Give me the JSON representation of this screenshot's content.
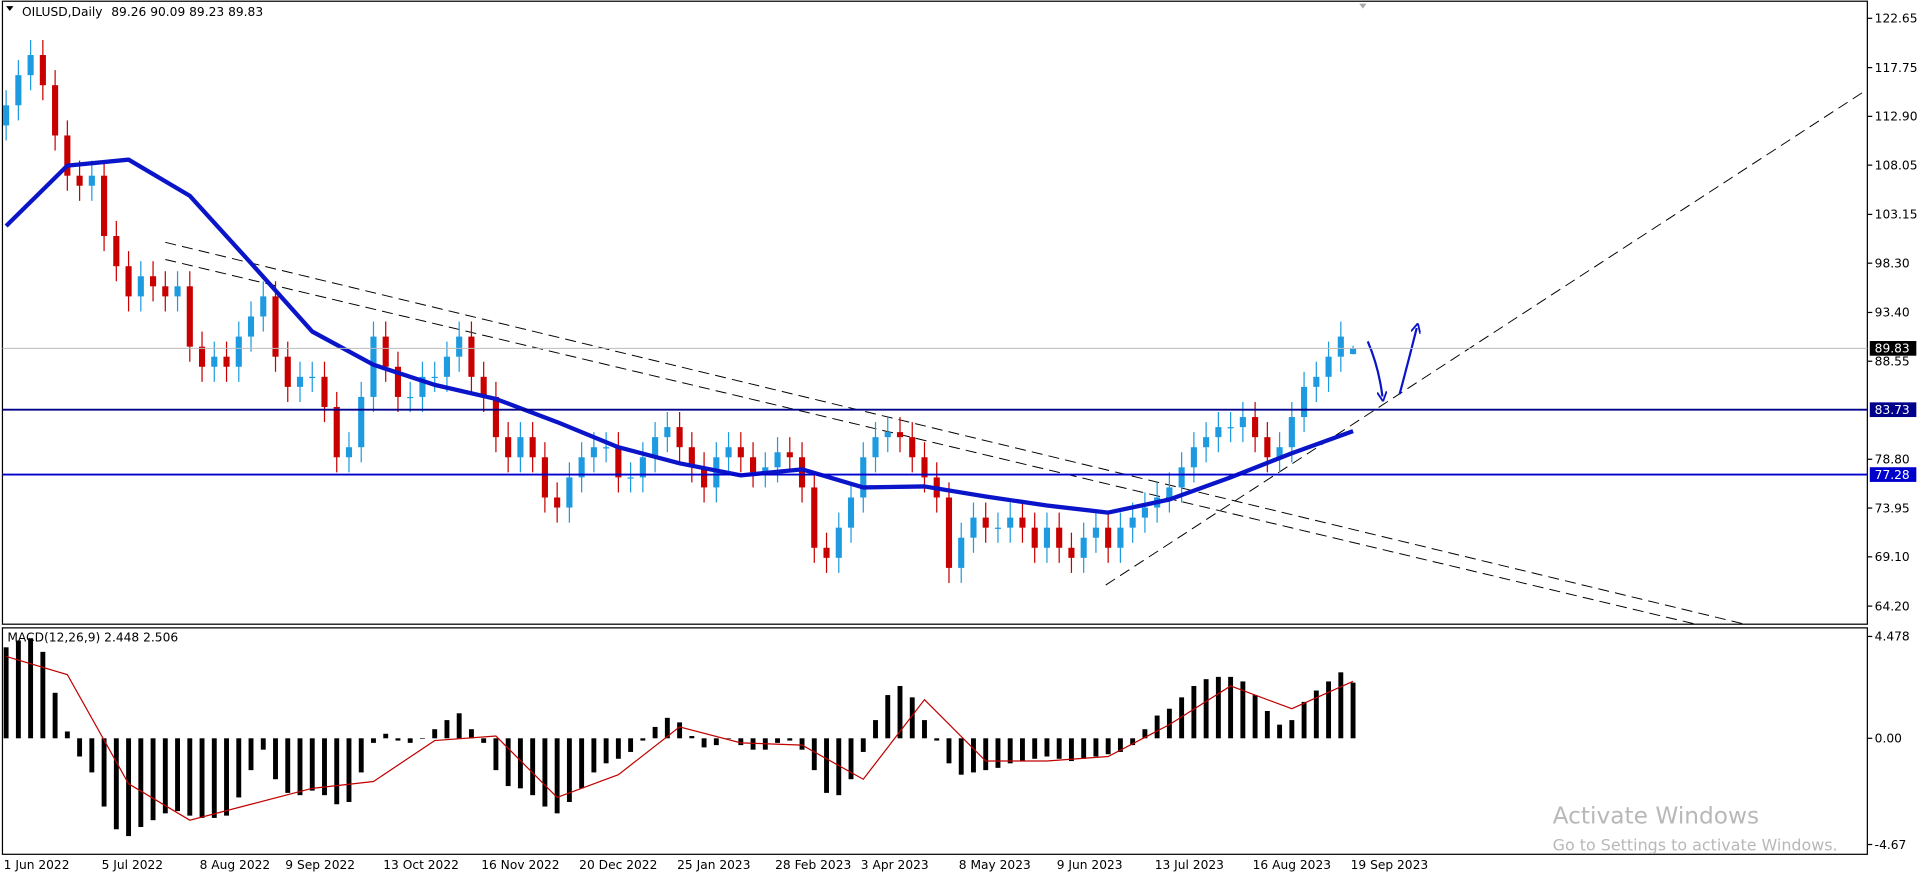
{
  "chart_data": [
    {
      "type": "candlestick",
      "symbol": "OILUSD,Daily",
      "categories": [
        "1 Jun 2022",
        null,
        null,
        null,
        null,
        null,
        null,
        null,
        "5 Jul 2022",
        null,
        null,
        null,
        null,
        null,
        null,
        null,
        "8 Aug 2022",
        null,
        null,
        null,
        null,
        null,
        null,
        "9 Sep 2022",
        null,
        null,
        null,
        null,
        null,
        null,
        null,
        "13 Oct 2022",
        null,
        null,
        null,
        null,
        null,
        null,
        null,
        "16 Nov 2022",
        null,
        null,
        null,
        null,
        null,
        null,
        null,
        "20 Dec 2022",
        null,
        null,
        null,
        null,
        null,
        null,
        null,
        "25 Jan 2023",
        null,
        null,
        null,
        null,
        null,
        null,
        null,
        "28 Feb 2023",
        null,
        null,
        null,
        null,
        null,
        null,
        "3 Apr 2023",
        null,
        null,
        null,
        null,
        null,
        null,
        null,
        "8 May 2023",
        null,
        null,
        null,
        null,
        null,
        null,
        null,
        "9 Jun 2023",
        null,
        null,
        null,
        null,
        null,
        null,
        null,
        "13 Jul 2023",
        null,
        null,
        null,
        null,
        null,
        null,
        null,
        "16 Aug 2023",
        null,
        null,
        null,
        null,
        null,
        null,
        null,
        "19 Sep 2023"
      ],
      "open": [
        112,
        114,
        117,
        119,
        116,
        111,
        107,
        106,
        107,
        101,
        98,
        95,
        97,
        96,
        95,
        96,
        90,
        88,
        89,
        88,
        91,
        93,
        95,
        89,
        86,
        87,
        87,
        84,
        79,
        80,
        85,
        91,
        88,
        85,
        85,
        87,
        87,
        89,
        91,
        87,
        85,
        81,
        79,
        81,
        79,
        75,
        74,
        77,
        79,
        80,
        80,
        77,
        77,
        79,
        81,
        82,
        80,
        78,
        76,
        79,
        80,
        79,
        77.5,
        78,
        79.5,
        79,
        76,
        70,
        69,
        72,
        75,
        79,
        81,
        81.5,
        81,
        79,
        77,
        75,
        68,
        71,
        73,
        72,
        72,
        73,
        72,
        70,
        72,
        70,
        69,
        71,
        72,
        70,
        72,
        73,
        74,
        75,
        76,
        78,
        80,
        81,
        82,
        82,
        83,
        81,
        79,
        80,
        83,
        86,
        87,
        89,
        89.26
      ],
      "high": [
        115.5,
        118.5,
        120.5,
        120.5,
        117.5,
        112.5,
        108.5,
        108.5,
        108.5,
        102.5,
        99.5,
        98.5,
        98.5,
        97.5,
        97.5,
        97.5,
        91.5,
        90.5,
        90.5,
        92.5,
        94.5,
        96.5,
        96.5,
        90.5,
        88.5,
        88.5,
        88.5,
        85.5,
        81.5,
        86.5,
        92.5,
        92.5,
        89.5,
        86.5,
        88.5,
        88.5,
        90.5,
        92.5,
        92.5,
        88.5,
        86.5,
        82.5,
        82.5,
        82.5,
        80.5,
        76.5,
        78.5,
        80.5,
        81.5,
        81.5,
        81.5,
        78.5,
        80.5,
        82.5,
        83.5,
        83.5,
        81.5,
        79.5,
        80.5,
        81.5,
        81.5,
        80.5,
        79.5,
        81,
        81,
        80.5,
        77.5,
        71.5,
        73.5,
        76.5,
        80.5,
        82.5,
        83,
        83,
        82.5,
        80.5,
        78.5,
        76.5,
        72.5,
        74.5,
        74.5,
        73.5,
        74.5,
        74.5,
        73.5,
        73.5,
        73.5,
        71.5,
        72.5,
        73.5,
        73.5,
        73.5,
        74.5,
        75.5,
        76.5,
        77.5,
        79.5,
        81.5,
        82.5,
        83.5,
        83.5,
        84.5,
        84.5,
        82.5,
        81.5,
        84.5,
        87.5,
        88.5,
        90.5,
        92.5,
        90.09
      ],
      "low": [
        110.5,
        112.5,
        115.5,
        114.5,
        109.5,
        105.5,
        104.5,
        104.5,
        99.5,
        96.5,
        93.5,
        93.5,
        94.5,
        93.5,
        93.5,
        88.5,
        86.5,
        86.5,
        86.5,
        86.5,
        89.5,
        91.5,
        87.5,
        84.5,
        84.5,
        85.5,
        82.5,
        77.5,
        77.5,
        78.5,
        83.5,
        86.5,
        83.5,
        83.5,
        83.5,
        85.5,
        85.5,
        87.5,
        85.5,
        83.5,
        79.5,
        77.5,
        77.5,
        77.5,
        73.5,
        72.5,
        72.5,
        75.5,
        77.5,
        78.5,
        75.5,
        75.5,
        75.5,
        77.5,
        79.5,
        78.5,
        76.5,
        74.5,
        74.5,
        77.5,
        77.5,
        76,
        76,
        76.5,
        77.5,
        74.5,
        68.5,
        67.5,
        67.5,
        70.5,
        73.5,
        77.5,
        79.5,
        79.5,
        77.5,
        75.5,
        73.5,
        66.5,
        66.5,
        69.5,
        70.5,
        70.5,
        70.5,
        70.5,
        68.5,
        68.5,
        68.5,
        67.5,
        67.5,
        69.5,
        68.5,
        68.5,
        70.5,
        71.5,
        72.5,
        73.5,
        74.5,
        76.5,
        78.5,
        79.5,
        80.5,
        80.5,
        79.5,
        77.5,
        77.5,
        78.5,
        81.5,
        84.5,
        85.5,
        87.5,
        89.23
      ],
      "close": [
        114,
        117,
        119,
        116,
        111,
        107,
        106,
        107,
        101,
        98,
        95,
        97,
        96,
        95,
        96,
        90,
        88,
        89,
        88,
        91,
        93,
        95,
        89,
        86,
        87,
        87,
        84,
        79,
        80,
        85,
        91,
        88,
        85,
        85,
        87,
        87,
        89,
        91,
        87,
        85,
        81,
        79,
        81,
        79,
        75,
        74,
        77,
        79,
        80,
        80,
        77,
        77,
        79,
        81,
        82,
        80,
        78,
        76,
        79,
        80,
        79,
        77.5,
        78,
        79.5,
        79,
        76,
        70,
        69,
        72,
        75,
        79,
        81,
        81.5,
        81,
        79,
        77,
        75,
        68,
        71,
        73,
        72,
        72,
        73,
        72,
        70,
        72,
        70,
        69,
        71,
        72,
        70,
        72,
        73,
        74,
        75,
        76,
        78,
        80,
        81,
        82,
        82,
        83,
        81,
        79,
        80,
        83,
        86,
        87,
        89,
        91,
        89.83
      ],
      "up_color": "#1e9be0",
      "down_color": "#c80000",
      "ylim": [
        62.4,
        124.35
      ],
      "yticks": [
        122.65,
        117.75,
        {
          "value": 112.9,
          "label": "112.90"
        },
        108.05,
        103.15,
        {
          "value": 98.3,
          "label": "98.30"
        },
        {
          "value": 93.4,
          "label": "93.40"
        },
        88.55,
        {
          "value": 78.8,
          "label": "78.80"
        },
        73.95,
        {
          "value": 69.1,
          "label": "69.10"
        },
        {
          "value": 64.2,
          "label": "64.20"
        }
      ],
      "levels": [
        {
          "value": 83.73,
          "color": "#00008b"
        },
        {
          "value": 77.28,
          "color": "#0000cd"
        }
      ],
      "ma": {
        "color": "#0a14c8",
        "x": [
          0,
          5,
          10,
          15,
          20,
          25,
          30,
          35,
          40,
          45,
          50,
          55,
          60,
          65,
          70,
          75,
          80,
          85,
          90,
          95,
          100,
          105,
          110
        ],
        "values": [
          102,
          108,
          108.6,
          105,
          98.3,
          91.5,
          88.2,
          86.2,
          84.8,
          82.5,
          80,
          78.4,
          77.2,
          77.8,
          76,
          76.1,
          75.1,
          74.2,
          73.5,
          74.8,
          77,
          79.4,
          81.6
        ]
      }
    },
    {
      "type": "bar",
      "label": "MACD(12,26,9)",
      "color": "#000000",
      "values": [
        4.0,
        4.3,
        4.4,
        3.8,
        2.0,
        0.3,
        -0.8,
        -1.5,
        -3.0,
        -4.0,
        -4.3,
        -3.9,
        -3.6,
        -3.3,
        -3.2,
        -3.4,
        -3.5,
        -3.5,
        -3.4,
        -2.6,
        -1.4,
        -0.5,
        -1.8,
        -2.4,
        -2.5,
        -2.3,
        -2.5,
        -2.9,
        -2.8,
        -1.5,
        -0.2,
        0.2,
        -0.1,
        -0.2,
        0.0,
        0.4,
        0.8,
        1.1,
        0.4,
        -0.2,
        -1.4,
        -2.1,
        -2.2,
        -2.5,
        -3.0,
        -3.3,
        -2.8,
        -2.2,
        -1.5,
        -1.1,
        -0.9,
        -0.6,
        -0.1,
        0.5,
        0.9,
        0.7,
        0.1,
        -0.4,
        -0.3,
        0.0,
        -0.3,
        -0.5,
        -0.5,
        -0.2,
        -0.1,
        -0.5,
        -1.4,
        -2.4,
        -2.5,
        -1.8,
        -0.6,
        0.8,
        1.9,
        2.3,
        1.8,
        0.8,
        -0.1,
        -1.1,
        -1.6,
        -1.5,
        -1.4,
        -1.3,
        -1.1,
        -1.0,
        -0.9,
        -0.8,
        -0.9,
        -1.0,
        -0.9,
        -0.8,
        -0.7,
        -0.6,
        -0.3,
        0.4,
        1.0,
        1.3,
        1.8,
        2.3,
        2.6,
        2.7,
        2.7,
        2.5,
        1.9,
        1.2,
        0.6,
        0.8,
        1.6,
        2.1,
        2.5,
        2.9,
        2.448
      ],
      "signal": {
        "color": "#c00000",
        "x": [
          0,
          5,
          10,
          15,
          20,
          25,
          30,
          35,
          40,
          45,
          50,
          55,
          60,
          65,
          70,
          75,
          80,
          85,
          90,
          95,
          100,
          105,
          110
        ],
        "values": [
          3.6,
          2.8,
          -2.0,
          -3.6,
          -2.9,
          -2.2,
          -1.9,
          -0.1,
          0.1,
          -2.6,
          -1.6,
          0.5,
          -0.2,
          -0.3,
          -1.8,
          1.7,
          -1.0,
          -1.0,
          -0.8,
          0.6,
          2.3,
          1.3,
          2.506
        ]
      },
      "ylim": [
        -5.1,
        4.855
      ],
      "yticks": [
        4.478,
        {
          "value": 0,
          "label": "0.00"
        },
        -4.67
      ]
    }
  ],
  "watermark": {
    "title": "Activate Windows",
    "subtitle": "Go to Settings to activate Windows."
  }
}
